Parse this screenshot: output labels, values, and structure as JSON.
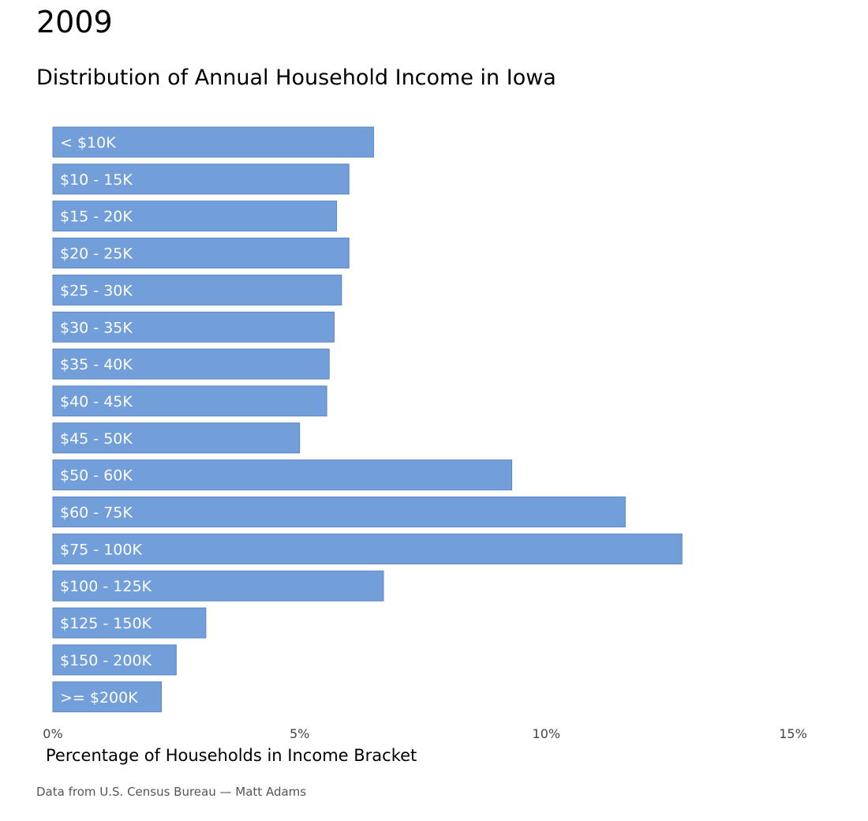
{
  "chart_data": {
    "type": "bar",
    "orientation": "horizontal",
    "year": "2009",
    "title": "Distribution of Annual Household Income in Iowa",
    "xlabel": "Percentage of Households in Income Bracket",
    "ylabel": "",
    "caption": "Data from U.S. Census Bureau — Matt Adams",
    "categories": [
      "< $10K",
      "$10 - 15K",
      "$15 - 20K",
      "$20 - 25K",
      "$25 - 30K",
      "$30 - 35K",
      "$35 - 40K",
      "$40 - 45K",
      "$45 - 50K",
      "$50 - 60K",
      "$60 - 75K",
      "$75 - 100K",
      "$100 - 125K",
      "$125 - 150K",
      "$150 - 200K",
      ">= $200K"
    ],
    "values": [
      6.5,
      6.0,
      5.75,
      6.0,
      5.85,
      5.7,
      5.6,
      5.55,
      5.0,
      9.3,
      11.6,
      12.75,
      6.7,
      3.1,
      2.5,
      2.2
    ],
    "xlim": [
      0,
      15
    ],
    "xticks": [
      0,
      5,
      10,
      15
    ],
    "xtick_labels": [
      "0%",
      "5%",
      "10%",
      "15%"
    ],
    "bar_color": "#729ed9",
    "bar_edge_color": "#5a86c4",
    "label_placement": "inside-left",
    "grid": false,
    "legend": "none"
  }
}
